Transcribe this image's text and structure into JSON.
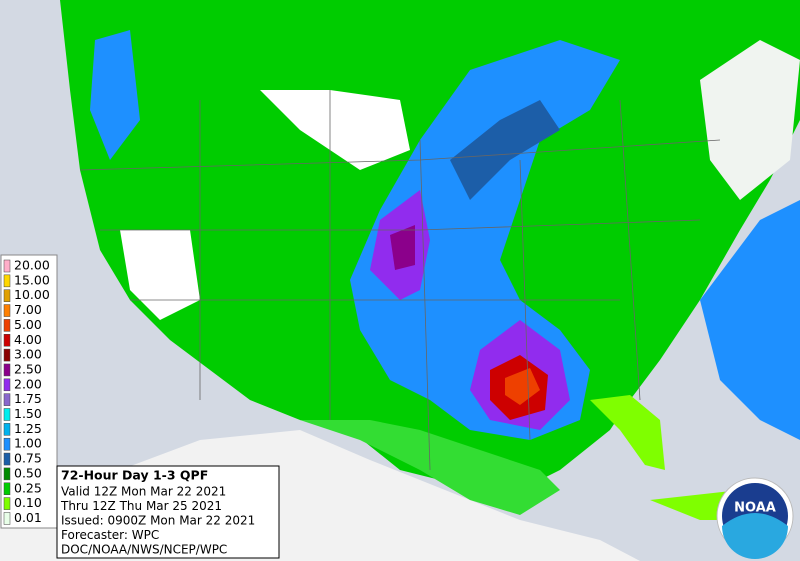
{
  "legend": {
    "items": [
      {
        "label": "20.00",
        "color": "#ffaec9"
      },
      {
        "label": "15.00",
        "color": "#ffd700"
      },
      {
        "label": "10.00",
        "color": "#e0a000"
      },
      {
        "label": "7.00",
        "color": "#ff7f00"
      },
      {
        "label": "5.00",
        "color": "#ee4000"
      },
      {
        "label": "4.00",
        "color": "#cd0000"
      },
      {
        "label": "3.00",
        "color": "#8b0000"
      },
      {
        "label": "2.50",
        "color": "#8b008b"
      },
      {
        "label": "2.00",
        "color": "#912cee"
      },
      {
        "label": "1.75",
        "color": "#8968cd"
      },
      {
        "label": "1.50",
        "color": "#00eeee"
      },
      {
        "label": "1.25",
        "color": "#00b2ee"
      },
      {
        "label": "1.00",
        "color": "#1e90ff"
      },
      {
        "label": "0.75",
        "color": "#1c5ea8"
      },
      {
        "label": "0.50",
        "color": "#008b00"
      },
      {
        "label": "0.25",
        "color": "#00cd00"
      },
      {
        "label": "0.10",
        "color": "#7fff00"
      },
      {
        "label": "0.01",
        "color": "#e8ffe8"
      }
    ]
  },
  "info": {
    "title": "72-Hour Day 1-3 QPF",
    "lines": [
      "Valid 12Z Mon Mar 22 2021",
      "Thru 12Z Thu Mar 25 2021",
      "Issued: 0900Z Mon Mar 22 2021",
      "Forecaster: WPC",
      "DOC/NOAA/NWS/NCEP/WPC"
    ]
  },
  "logo": {
    "text": "NOAA"
  }
}
